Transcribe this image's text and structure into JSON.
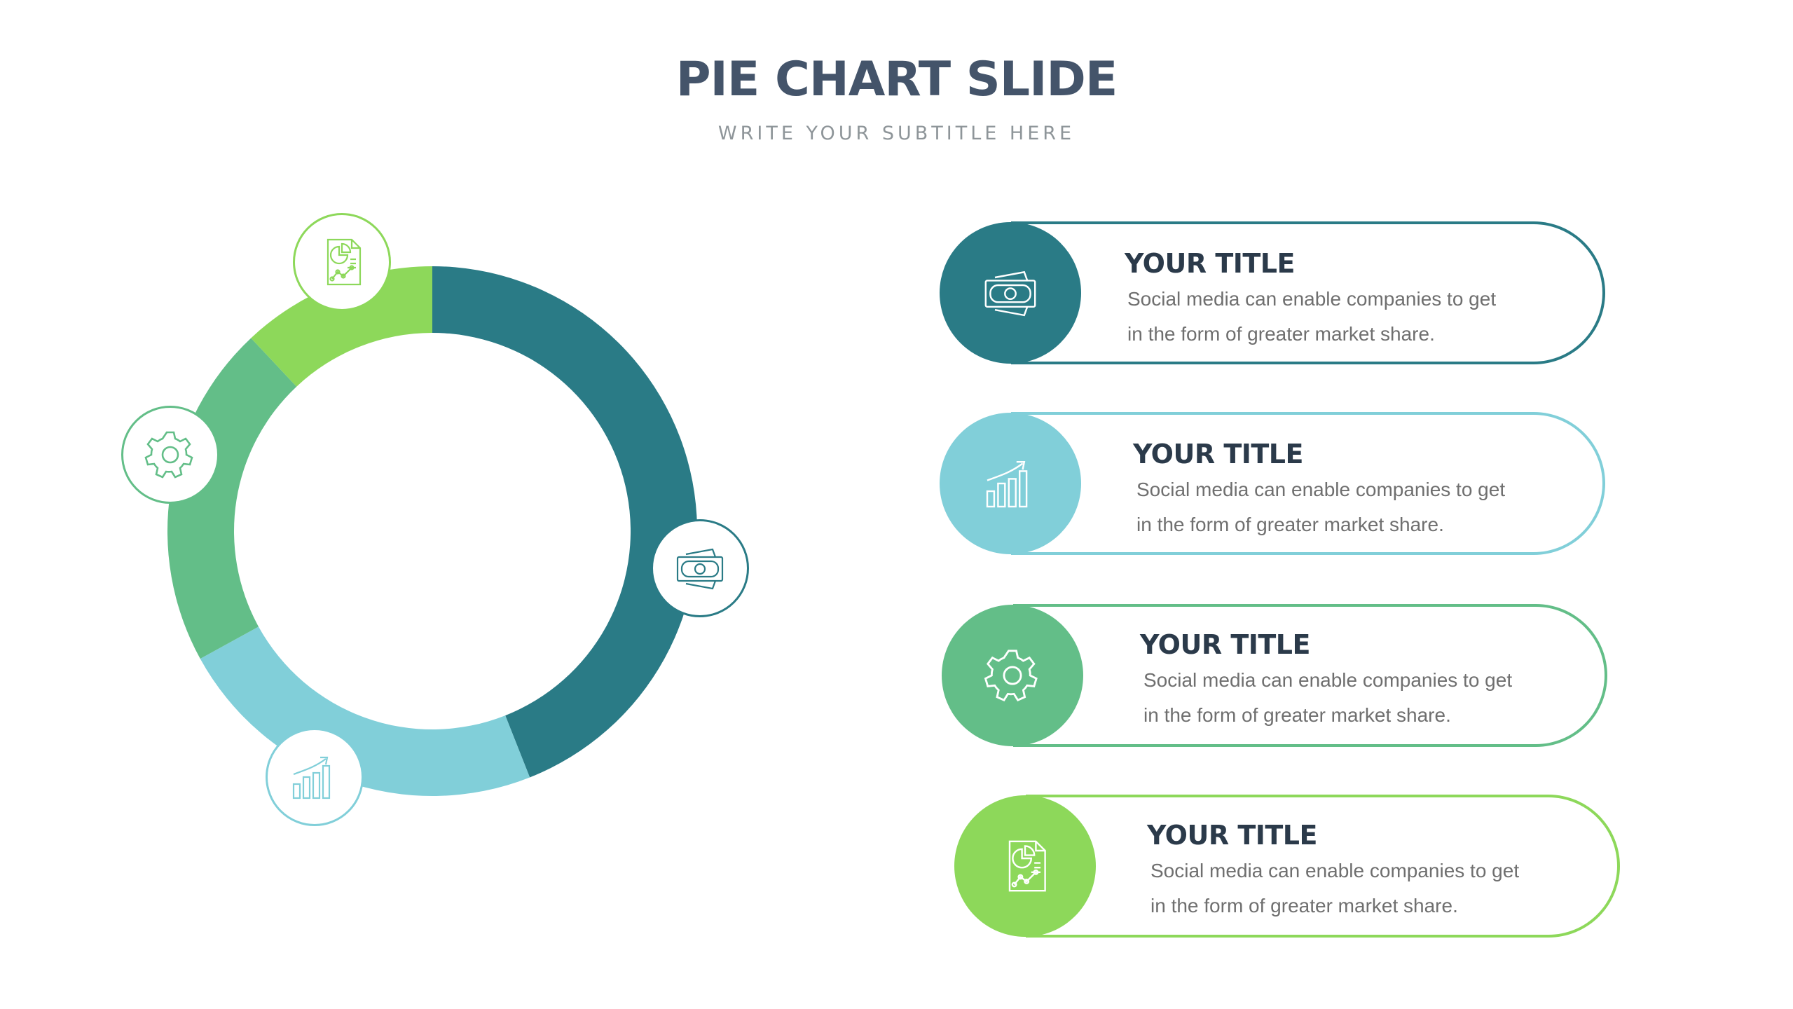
{
  "slide": {
    "title": "PIE CHART SLIDE",
    "subtitle": "WRITE YOUR SUBTITLE HERE"
  },
  "colors": {
    "dark_teal": "#2a7b86",
    "light_blue": "#81cfd9",
    "mid_green": "#63be88",
    "light_green": "#8dd85a",
    "title_text": "#44546a",
    "subtitle_text": "#8e9599"
  },
  "chart_data": {
    "type": "pie",
    "style": "donut",
    "title": "",
    "categories": [
      "dark-teal",
      "light-blue",
      "mid-green",
      "light-green"
    ],
    "values": [
      44,
      23,
      21,
      12
    ],
    "colors": [
      "#2a7b86",
      "#81cfd9",
      "#63be88",
      "#8dd85a"
    ],
    "slice_icons": [
      "money-icon",
      "bar-chart-growth-icon",
      "gear-icon",
      "report-document-icon"
    ],
    "legend": "none"
  },
  "cards": [
    {
      "title": "YOUR TITLE",
      "line1": "Social media can enable companies to get",
      "line2": "in the form of greater market share.",
      "color": "#2a7b86",
      "icon": "money-icon"
    },
    {
      "title": "YOUR TITLE",
      "line1": "Social media can enable companies to get",
      "line2": "in the form of greater market share.",
      "color": "#81cfd9",
      "icon": "bar-chart-growth-icon"
    },
    {
      "title": "YOUR TITLE",
      "line1": "Social media can enable companies to get",
      "line2": "in the form of greater market share.",
      "color": "#63be88",
      "icon": "gear-icon"
    },
    {
      "title": "YOUR TITLE",
      "line1": "Social media can enable companies to get",
      "line2": "in the form of greater market share.",
      "color": "#8dd85a",
      "icon": "report-document-icon"
    }
  ]
}
